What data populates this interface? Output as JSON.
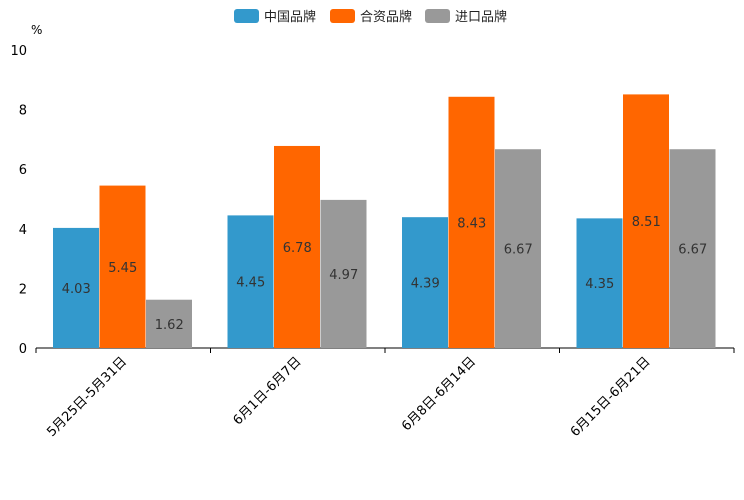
{
  "chart_data": {
    "type": "bar",
    "title": "",
    "xlabel": "",
    "ylabel": "",
    "unit": "%",
    "ylim": [
      0,
      10
    ],
    "yticks": [
      0,
      2,
      4,
      6,
      8,
      10
    ],
    "categories": [
      "5月25日-5月31日",
      "6月1日-6月7日",
      "6月8日-6月14日",
      "6月15日-6月21日"
    ],
    "series": [
      {
        "name": "中国品牌",
        "color": "#3399cc",
        "values": [
          4.03,
          4.45,
          4.39,
          4.35
        ],
        "labels": [
          "4.03",
          "4.45",
          "4.39",
          "4.35"
        ]
      },
      {
        "name": "合资品牌",
        "color": "#ff6600",
        "values": [
          5.45,
          6.78,
          8.43,
          8.51
        ],
        "labels": [
          "5.45",
          "6.78",
          "8.43",
          "8.51"
        ]
      },
      {
        "name": "进口品牌",
        "color": "#999999",
        "values": [
          1.62,
          4.97,
          6.67,
          6.67
        ],
        "labels": [
          "1.62",
          "4.97",
          "6.67",
          "6.67"
        ]
      }
    ],
    "legend": "top-center",
    "grid": false
  }
}
